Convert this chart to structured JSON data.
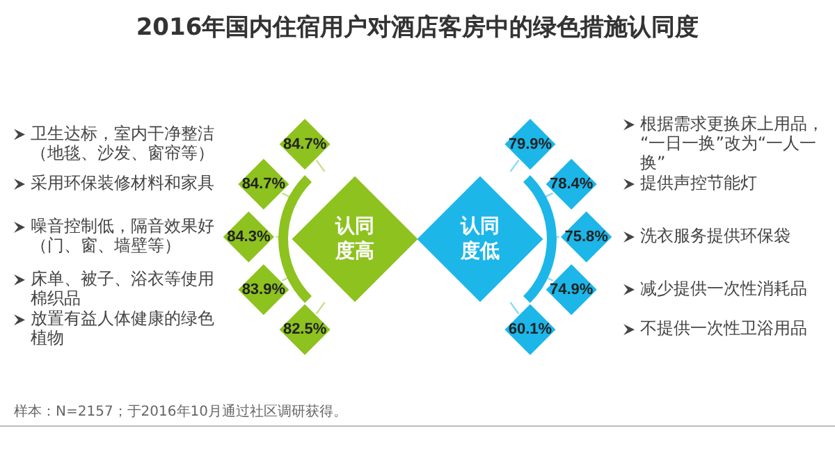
{
  "chart_data": {
    "type": "other",
    "title": "2016年国内住宿用户对酒店客房中的绿色措施认同度",
    "categories": [
      "卫生达标，室内干净整洁（地毯、沙发、窗帘等）",
      "采用环保装修材料和家具",
      "噪音控制低，隔音效果好（门、窗、墙壁等）",
      "床单、被子、浴衣等使用棉织品",
      "放置有益人体健康的绿色植物",
      "根据需求更换床上用品，“一日一换”改为“一人一换”",
      "提供声控节能灯",
      "洗衣服务提供环保袋",
      "减少提供一次性消耗品",
      "不提供一次性卫浴用品"
    ],
    "series": [
      {
        "name": "认同度高",
        "color": "#8dc21f",
        "values": [
          84.7,
          84.7,
          84.3,
          83.9,
          82.5,
          null,
          null,
          null,
          null,
          null
        ],
        "value_labels": [
          "84.7%",
          "84.7%",
          "84.3%",
          "83.9%",
          "82.5%",
          null,
          null,
          null,
          null,
          null
        ]
      },
      {
        "name": "认同度低",
        "color": "#1cb6e9",
        "values": [
          null,
          null,
          null,
          null,
          null,
          79.9,
          78.4,
          75.8,
          74.9,
          60.1
        ],
        "value_labels": [
          null,
          null,
          null,
          null,
          null,
          "79.9%",
          "78.4%",
          "75.8%",
          "74.9%",
          "60.1%"
        ]
      }
    ],
    "annotations": [
      "样本：N=2157；于2016年10月通过社区调研获得。"
    ]
  }
}
